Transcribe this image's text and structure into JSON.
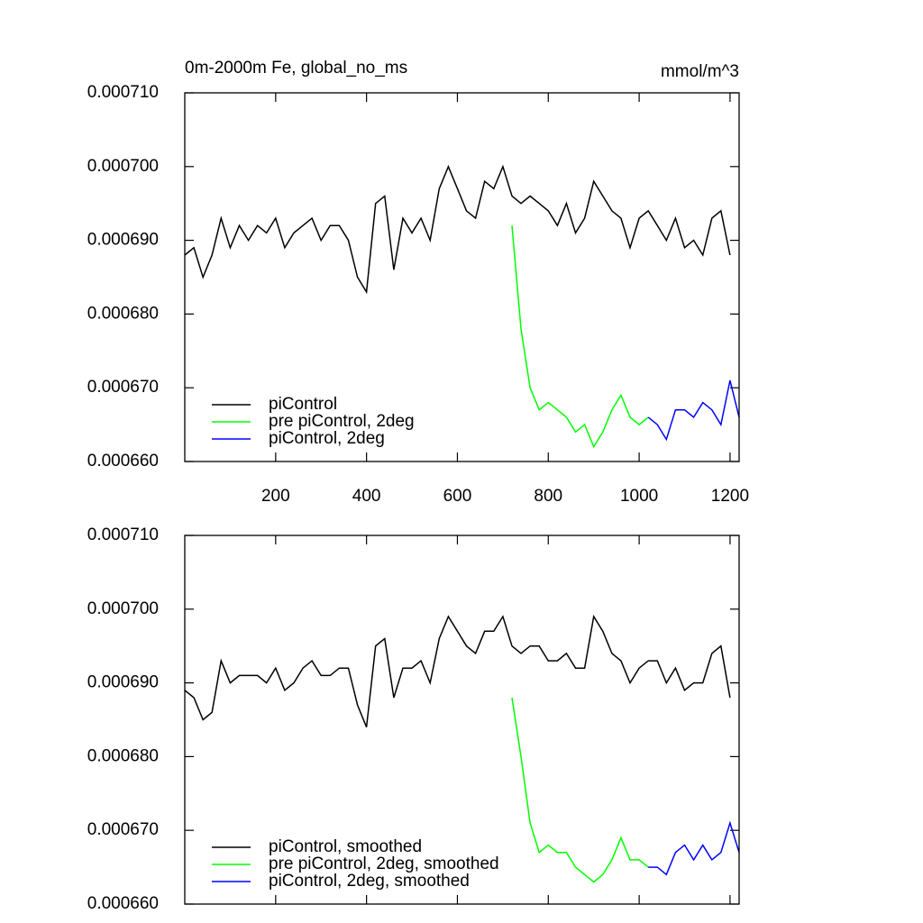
{
  "chart_data": [
    {
      "type": "line",
      "title": "0m-2000m Fe, global_no_ms",
      "y_units": "mmol/m^3",
      "x": [
        0,
        20,
        40,
        60,
        80,
        100,
        120,
        140,
        160,
        180,
        200,
        220,
        240,
        260,
        280,
        300,
        320,
        340,
        360,
        380,
        400,
        420,
        440,
        460,
        480,
        500,
        520,
        540,
        560,
        580,
        600,
        620,
        640,
        660,
        680,
        700,
        720,
        740,
        760,
        780,
        800,
        820,
        840,
        860,
        880,
        900,
        920,
        940,
        960,
        980,
        1000,
        1020,
        1040,
        1060,
        1080,
        1100,
        1120,
        1140,
        1160,
        1180,
        1200,
        1220
      ],
      "series": [
        {
          "name": "piControl",
          "color": "#000000",
          "values": [
            0.000688,
            0.000689,
            0.000685,
            0.000688,
            0.000693,
            0.000689,
            0.000692,
            0.00069,
            0.000692,
            0.000691,
            0.000693,
            0.000689,
            0.000691,
            0.000692,
            0.000693,
            0.00069,
            0.000692,
            0.000692,
            0.00069,
            0.000685,
            0.000683,
            0.000695,
            0.000696,
            0.000686,
            0.000693,
            0.000691,
            0.000693,
            0.00069,
            0.000697,
            0.0007,
            0.000697,
            0.000694,
            0.000693,
            0.000698,
            0.000697,
            0.0007,
            0.000696,
            0.000695,
            0.000696,
            0.000695,
            0.000694,
            0.000692,
            0.000695,
            0.000691,
            0.000693,
            0.000698,
            0.000696,
            0.000694,
            0.000693,
            0.000689,
            0.000693,
            0.000694,
            0.000692,
            0.00069,
            0.000693,
            0.000689,
            0.00069,
            0.000688,
            0.000693,
            0.000694,
            0.000688,
            null
          ]
        },
        {
          "name": "pre piControl, 2deg",
          "color": "#00ff00",
          "values": [
            null,
            null,
            null,
            null,
            null,
            null,
            null,
            null,
            null,
            null,
            null,
            null,
            null,
            null,
            null,
            null,
            null,
            null,
            null,
            null,
            null,
            null,
            null,
            null,
            null,
            null,
            null,
            null,
            null,
            null,
            null,
            null,
            null,
            null,
            null,
            null,
            0.000692,
            0.000678,
            0.00067,
            0.000667,
            0.000668,
            0.000667,
            0.000666,
            0.000664,
            0.000665,
            0.000662,
            0.000664,
            0.000667,
            0.000669,
            0.000666,
            0.000665,
            0.000666,
            null,
            null,
            null,
            null,
            null,
            null,
            null,
            null,
            null,
            null
          ]
        },
        {
          "name": "piControl, 2deg",
          "color": "#0000ff",
          "values": [
            null,
            null,
            null,
            null,
            null,
            null,
            null,
            null,
            null,
            null,
            null,
            null,
            null,
            null,
            null,
            null,
            null,
            null,
            null,
            null,
            null,
            null,
            null,
            null,
            null,
            null,
            null,
            null,
            null,
            null,
            null,
            null,
            null,
            null,
            null,
            null,
            null,
            null,
            null,
            null,
            null,
            null,
            null,
            null,
            null,
            null,
            null,
            null,
            null,
            null,
            null,
            0.000666,
            0.000665,
            0.000663,
            0.000667,
            0.000667,
            0.000666,
            0.000668,
            0.000667,
            0.000665,
            0.000671,
            0.000666
          ]
        }
      ],
      "xlim": [
        0,
        1220
      ],
      "xticks": [
        200,
        400,
        600,
        800,
        1000,
        1200
      ],
      "xtick_labels": true,
      "ylim": [
        0.00066,
        0.00071
      ],
      "yticks": [
        {
          "value": 0.00066,
          "label": "0.000660"
        },
        {
          "value": 0.00067,
          "label": "0.000670"
        },
        {
          "value": 0.00068,
          "label": "0.000680"
        },
        {
          "value": 0.00069,
          "label": "0.000690"
        },
        {
          "value": 0.0007,
          "label": "0.000700"
        },
        {
          "value": 0.00071,
          "label": "0.000710"
        }
      ],
      "legend": "lower left"
    },
    {
      "type": "line",
      "x": [
        0,
        20,
        40,
        60,
        80,
        100,
        120,
        140,
        160,
        180,
        200,
        220,
        240,
        260,
        280,
        300,
        320,
        340,
        360,
        380,
        400,
        420,
        440,
        460,
        480,
        500,
        520,
        540,
        560,
        580,
        600,
        620,
        640,
        660,
        680,
        700,
        720,
        740,
        760,
        780,
        800,
        820,
        840,
        860,
        880,
        900,
        920,
        940,
        960,
        980,
        1000,
        1020,
        1040,
        1060,
        1080,
        1100,
        1120,
        1140,
        1160,
        1180,
        1200,
        1220
      ],
      "series": [
        {
          "name": "piControl, smoothed",
          "color": "#000000",
          "values": [
            0.000689,
            0.000688,
            0.000685,
            0.000686,
            0.000693,
            0.00069,
            0.000691,
            0.000691,
            0.000691,
            0.00069,
            0.000692,
            0.000689,
            0.00069,
            0.000692,
            0.000693,
            0.000691,
            0.000691,
            0.000692,
            0.000692,
            0.000687,
            0.000684,
            0.000695,
            0.000696,
            0.000688,
            0.000692,
            0.000692,
            0.000693,
            0.00069,
            0.000696,
            0.000699,
            0.000697,
            0.000695,
            0.000694,
            0.000697,
            0.000697,
            0.000699,
            0.000695,
            0.000694,
            0.000695,
            0.000695,
            0.000693,
            0.000693,
            0.000694,
            0.000692,
            0.000692,
            0.000699,
            0.000697,
            0.000694,
            0.000693,
            0.00069,
            0.000692,
            0.000693,
            0.000693,
            0.00069,
            0.000692,
            0.000689,
            0.00069,
            0.00069,
            0.000694,
            0.000695,
            0.000688,
            null
          ]
        },
        {
          "name": "pre piControl, 2deg, smoothed",
          "color": "#00ff00",
          "values": [
            null,
            null,
            null,
            null,
            null,
            null,
            null,
            null,
            null,
            null,
            null,
            null,
            null,
            null,
            null,
            null,
            null,
            null,
            null,
            null,
            null,
            null,
            null,
            null,
            null,
            null,
            null,
            null,
            null,
            null,
            null,
            null,
            null,
            null,
            null,
            null,
            0.000688,
            0.00068,
            0.000671,
            0.000667,
            0.000668,
            0.000667,
            0.000667,
            0.000665,
            0.000664,
            0.000663,
            0.000664,
            0.000666,
            0.000669,
            0.000666,
            0.000666,
            0.000665,
            null,
            null,
            null,
            null,
            null,
            null,
            null,
            null,
            null,
            null
          ]
        },
        {
          "name": "piControl, 2deg, smoothed",
          "color": "#0000ff",
          "values": [
            null,
            null,
            null,
            null,
            null,
            null,
            null,
            null,
            null,
            null,
            null,
            null,
            null,
            null,
            null,
            null,
            null,
            null,
            null,
            null,
            null,
            null,
            null,
            null,
            null,
            null,
            null,
            null,
            null,
            null,
            null,
            null,
            null,
            null,
            null,
            null,
            null,
            null,
            null,
            null,
            null,
            null,
            null,
            null,
            null,
            null,
            null,
            null,
            null,
            null,
            null,
            0.000665,
            0.000665,
            0.000664,
            0.000667,
            0.000668,
            0.000666,
            0.000668,
            0.000666,
            0.000667,
            0.000671,
            0.000667
          ]
        }
      ],
      "xlim": [
        0,
        1220
      ],
      "xticks": [
        200,
        400,
        600,
        800,
        1000,
        1200
      ],
      "xtick_labels": false,
      "ylim": [
        0.00066,
        0.00071
      ],
      "yticks": [
        {
          "value": 0.00066,
          "label": "0.000660"
        },
        {
          "value": 0.00067,
          "label": "0.000670"
        },
        {
          "value": 0.00068,
          "label": "0.000680"
        },
        {
          "value": 0.00069,
          "label": "0.000690"
        },
        {
          "value": 0.0007,
          "label": "0.000700"
        },
        {
          "value": 0.00071,
          "label": "0.000710"
        }
      ],
      "legend": "lower left"
    }
  ]
}
